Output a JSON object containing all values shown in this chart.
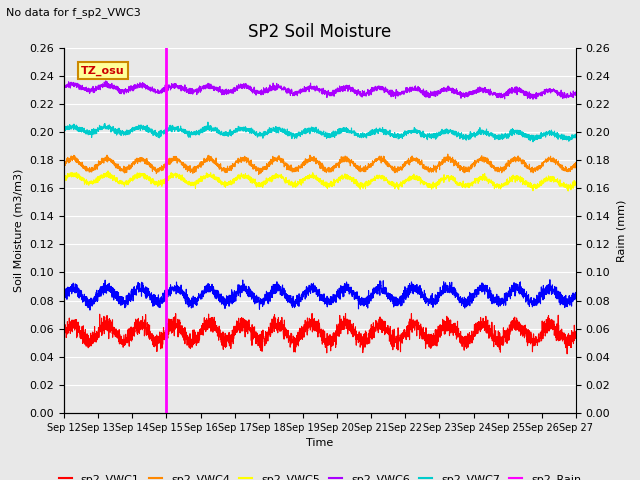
{
  "title": "SP2 Soil Moisture",
  "subtitle": "No data for f_sp2_VWC3",
  "xlabel": "Time",
  "ylabel_left": "Soil Moisture (m3/m3)",
  "ylabel_right": "Raim (mm)",
  "ylim_left": [
    0.0,
    0.26
  ],
  "ylim_right": [
    0.0,
    0.26
  ],
  "yticks": [
    0.0,
    0.02,
    0.04,
    0.06,
    0.08,
    0.1,
    0.12,
    0.14,
    0.16,
    0.18,
    0.2,
    0.22,
    0.24,
    0.26
  ],
  "xtick_labels": [
    "Sep 12",
    "Sep 13",
    "Sep 14",
    "Sep 15",
    "Sep 16",
    "Sep 17",
    "Sep 18",
    "Sep 19",
    "Sep 20",
    "Sep 21",
    "Sep 22",
    "Sep 23",
    "Sep 24",
    "Sep 25",
    "Sep 26",
    "Sep 27"
  ],
  "vline_pos": 3.0,
  "vline_color": "#ff00ff",
  "annotation_text": "TZ_osu",
  "series": {
    "sp2_VWC1": {
      "color": "#ff0000",
      "base": 0.057,
      "amplitude": 0.006,
      "period": 1.0,
      "trend": 0.0,
      "noise_scale": 0.003
    },
    "sp2_VWC2": {
      "color": "#0000ff",
      "base": 0.084,
      "amplitude": 0.005,
      "period": 1.0,
      "trend": 0.0,
      "noise_scale": 0.002
    },
    "sp2_VWC4": {
      "color": "#ff8800",
      "base": 0.177,
      "amplitude": 0.004,
      "period": 1.0,
      "trend": 0.0,
      "noise_scale": 0.001
    },
    "sp2_VWC5": {
      "color": "#ffff00",
      "base": 0.167,
      "amplitude": 0.003,
      "period": 1.0,
      "trend": -0.0002,
      "noise_scale": 0.001
    },
    "sp2_VWC6": {
      "color": "#aa00ff",
      "base": 0.232,
      "amplitude": 0.002,
      "period": 1.0,
      "trend": -0.0003,
      "noise_scale": 0.001
    },
    "sp2_VWC7": {
      "color": "#00cccc",
      "base": 0.202,
      "amplitude": 0.002,
      "period": 1.0,
      "trend": -0.0003,
      "noise_scale": 0.001
    }
  },
  "rain_color": "#ff00ff",
  "bg_color": "#e8e8e8",
  "grid_color": "#ffffff",
  "n_days": 15,
  "n_points": 3000
}
